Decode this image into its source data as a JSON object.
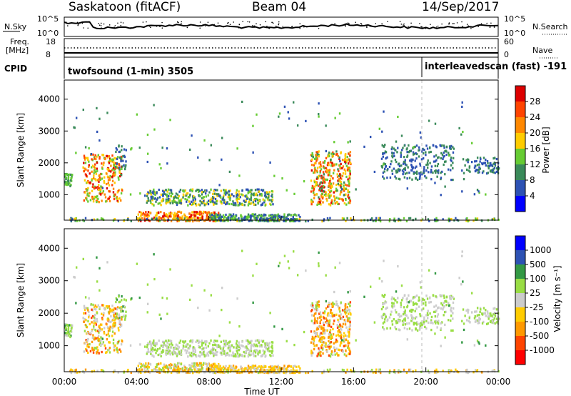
{
  "header": {
    "radar": "Saskatoon (fitACF)",
    "beam": "Beam 04",
    "date": "14/Sep/2017"
  },
  "noise_panel": {
    "left_label": "N.Sky",
    "right_label": "N.Search",
    "left_ticks": [
      "10^5",
      "10^0"
    ],
    "right_ticks": [
      "10^5",
      "10^0"
    ]
  },
  "freq_panel": {
    "left_label_1": "Freq.",
    "left_label_2": "[MHz]",
    "left_ticks": [
      "18",
      "8"
    ],
    "right_label": "Nave",
    "right_ticks": [
      "60",
      "0"
    ]
  },
  "cpid_panel": {
    "label": "CPID",
    "modes": [
      "twofsound (1-min) 3505",
      "interleavedscan (fast) -191"
    ]
  },
  "colors": {
    "power": [
      "#0000ff",
      "#2d52b4",
      "#3a8a5a",
      "#66cc33",
      "#ffcc00",
      "#ff8800",
      "#ff4400",
      "#dd0000"
    ],
    "velocity": [
      "#ff0000",
      "#ff4400",
      "#ff9900",
      "#ffcc00",
      "#cccccc",
      "#99dd44",
      "#339944",
      "#2d52b4",
      "#0000ff"
    ]
  },
  "chart_data": [
    {
      "type": "heatmap",
      "name": "power",
      "ylabel": "Slant Range [km]",
      "yticks": [
        "1000",
        "2000",
        "3000",
        "4000"
      ],
      "ylim": [
        200,
        4600
      ],
      "colorbar_label": "Power [dB]",
      "colorbar_ticks": [
        "4",
        "8",
        "12",
        "16",
        "20",
        "24",
        "28"
      ],
      "colorbar_range": [
        0,
        32
      ]
    },
    {
      "type": "heatmap",
      "name": "velocity",
      "ylabel": "Slant Range [km]",
      "yticks": [
        "1000",
        "2000",
        "3000",
        "4000"
      ],
      "ylim": [
        200,
        4600
      ],
      "colorbar_label": "Velocity [m s⁻¹]",
      "colorbar_ticks": [
        "-1000",
        "-500",
        "-100",
        "-25",
        "25",
        "100",
        "500",
        "1000"
      ],
      "xlabel": "Time UT",
      "xticks": [
        "00:00",
        "04:00",
        "08:00",
        "12:00",
        "16:00",
        "20:00",
        "00:00"
      ],
      "xlim_hours": [
        0,
        24
      ]
    }
  ]
}
